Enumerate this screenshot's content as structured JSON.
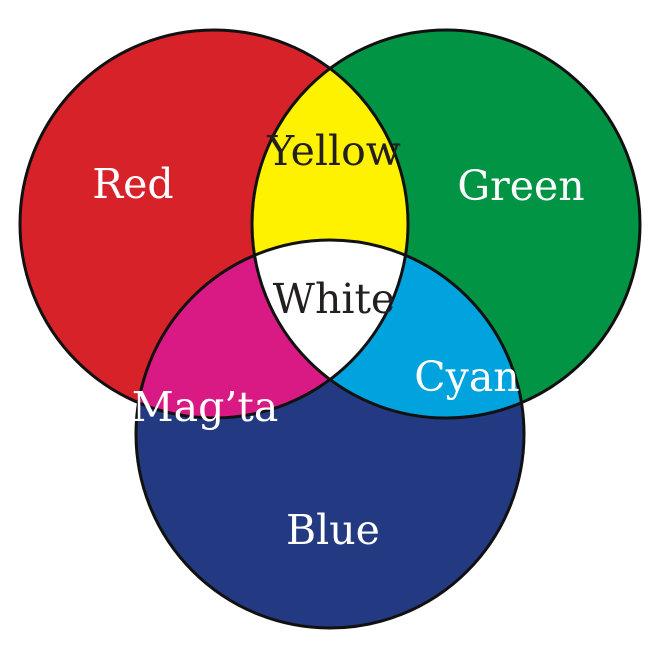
{
  "diagram": {
    "circles": [
      {
        "name": "Red",
        "color": "#d8222a"
      },
      {
        "name": "Green",
        "color": "#009444"
      },
      {
        "name": "Blue",
        "color": "#233a83"
      }
    ],
    "regions": {
      "red": {
        "label": "Red",
        "color": "#d8222a",
        "text_color": "#ffffff"
      },
      "green": {
        "label": "Green",
        "color": "#009444",
        "text_color": "#ffffff"
      },
      "blue": {
        "label": "Blue",
        "color": "#233a83",
        "text_color": "#ffffff"
      },
      "yellow": {
        "label": "Yellow",
        "color": "#fff200",
        "text_color": "#231f20"
      },
      "cyan": {
        "label": "Cyan",
        "color": "#00a3dd",
        "text_color": "#ffffff"
      },
      "magenta": {
        "label": "Mag’ta",
        "color": "#da1a84",
        "text_color": "#ffffff"
      },
      "white": {
        "label": "White",
        "color": "#ffffff",
        "text_color": "#231f20"
      }
    },
    "outline_color": "#111111",
    "background": "#ffffff"
  }
}
